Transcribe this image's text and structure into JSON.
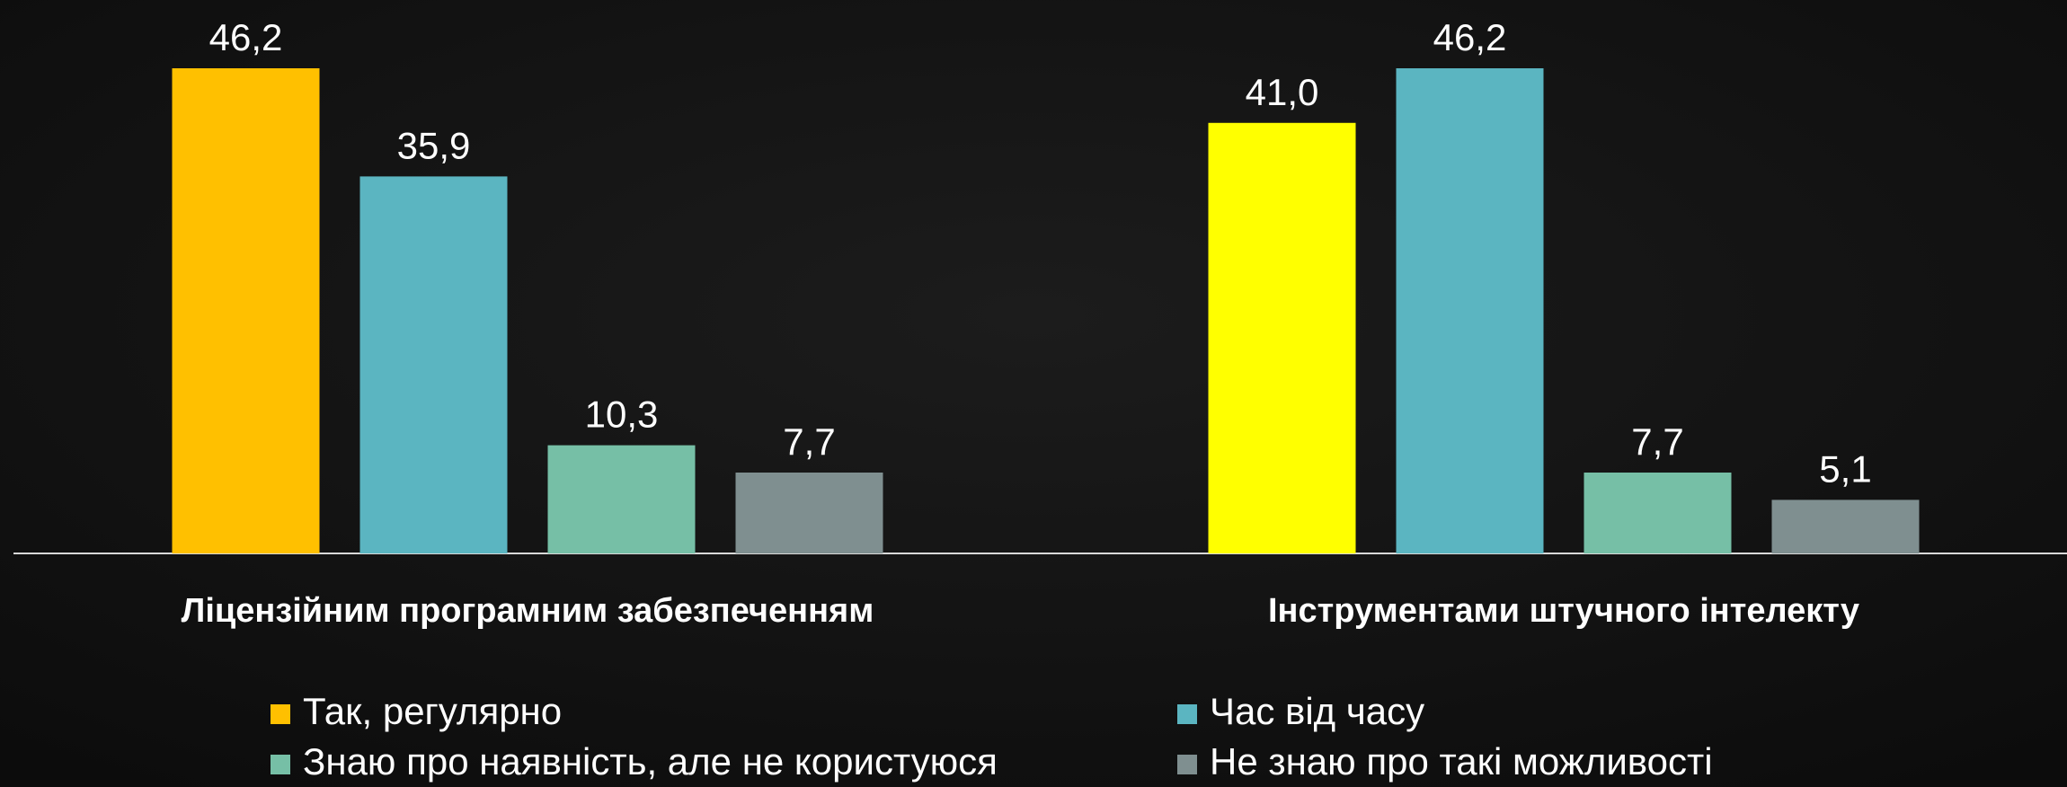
{
  "chart_data": {
    "type": "bar",
    "categories": [
      "Ліцензійним програмним забезпеченням",
      "Інструментами штучного інтелекту"
    ],
    "series": [
      {
        "name": "Так, регулярно",
        "color": "#ffc000",
        "colors": [
          "#ffc000",
          "#ffff00"
        ],
        "values": [
          46.2,
          41.0
        ],
        "value_labels": [
          "46,2",
          "41,0"
        ]
      },
      {
        "name": "Час від часу",
        "color": "#5bb5c1",
        "values": [
          35.9,
          46.2
        ],
        "value_labels": [
          "35,9",
          "46,2"
        ]
      },
      {
        "name": "Знаю про наявність, але не користуюся",
        "color": "#76bfa6",
        "values": [
          10.3,
          7.7
        ],
        "value_labels": [
          "10,3",
          "7,7"
        ]
      },
      {
        "name": "Не знаю про такі можливості",
        "color": "#7f8f90",
        "values": [
          7.7,
          5.1
        ],
        "value_labels": [
          "7,7",
          "5,1"
        ]
      }
    ]
  }
}
